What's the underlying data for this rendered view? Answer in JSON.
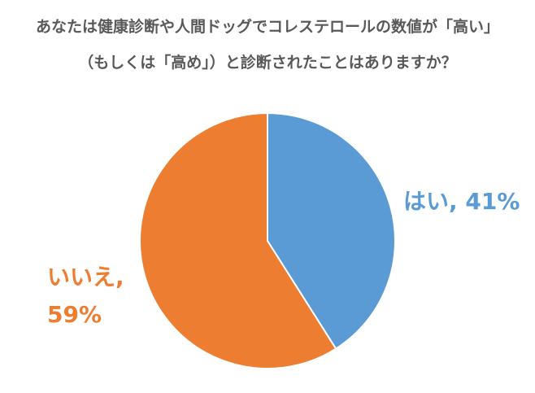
{
  "chart_data": {
    "type": "pie",
    "title_lines": [
      "あなたは健康診断や人間ドッグでコレステロールの数値が「高い」",
      "（もしくは「高め」）と診断されたことはありますか？"
    ],
    "slices": [
      {
        "category": "はい",
        "value": 41,
        "label": "はい, 41%",
        "color": "#5b9bd5"
      },
      {
        "category": "いいえ",
        "value": 59,
        "label_line1": "いいえ,",
        "label_line2": "59%",
        "color": "#ed7d31"
      }
    ],
    "start_angle": "12 o'clock",
    "direction": "clockwise"
  }
}
